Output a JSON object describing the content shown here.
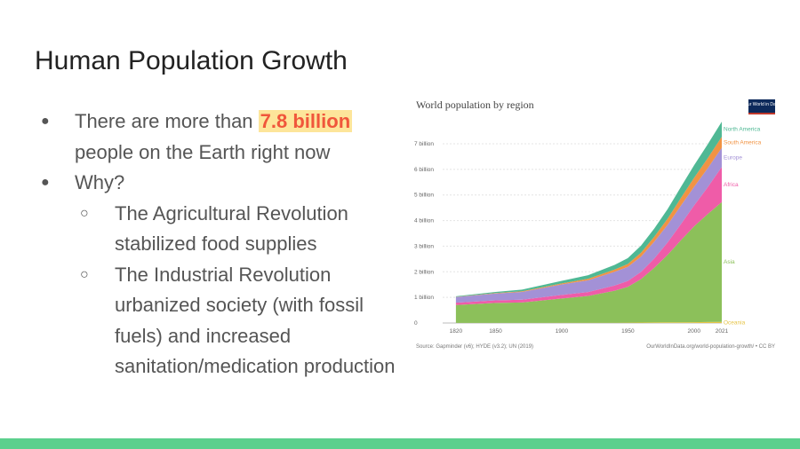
{
  "slide": {
    "title": "Human Population Growth",
    "bullets": {
      "first_prefix": "There are more than ",
      "first_highlight": "7.8 billion",
      "first_suffix": "people on the Earth right now",
      "second": "Why?",
      "sub1": "The Agricultural Revolution stabilized food supplies",
      "sub2": "The Industrial Revolution urbanized society (with fossil fuels) and increased sanitation/medication production"
    }
  },
  "colors": {
    "highlight_bg": "#fde59a",
    "highlight_text": "#f0563b",
    "accent_bar": "#5bd08d"
  },
  "chart_data": {
    "type": "area",
    "title": "World population by region",
    "logo_text": "Our World in Data",
    "x_ticks": [
      "1820",
      "1850",
      "1900",
      "1950",
      "2000",
      "2021"
    ],
    "y_ticks": [
      "0",
      "1 billion",
      "2 billion",
      "3 billion",
      "4 billion",
      "5 billion",
      "6 billion",
      "7 billion"
    ],
    "ylim": [
      0,
      7.8
    ],
    "x": [
      1820,
      1850,
      1870,
      1900,
      1920,
      1940,
      1950,
      1960,
      1970,
      1980,
      1990,
      2000,
      2010,
      2021
    ],
    "series": [
      {
        "name": "Oceania",
        "color": "#e6c446",
        "values": [
          0.002,
          0.002,
          0.002,
          0.006,
          0.008,
          0.011,
          0.013,
          0.016,
          0.02,
          0.023,
          0.027,
          0.031,
          0.037,
          0.044
        ]
      },
      {
        "name": "Asia",
        "color": "#8cc05a",
        "values": [
          0.7,
          0.78,
          0.8,
          0.95,
          1.05,
          1.25,
          1.4,
          1.7,
          2.14,
          2.64,
          3.2,
          3.74,
          4.2,
          4.68
        ]
      },
      {
        "name": "Africa",
        "color": "#ef5ca8",
        "values": [
          0.09,
          0.1,
          0.11,
          0.14,
          0.15,
          0.2,
          0.23,
          0.28,
          0.36,
          0.48,
          0.63,
          0.81,
          1.04,
          1.37
        ]
      },
      {
        "name": "Europe",
        "color": "#a391d6",
        "values": [
          0.22,
          0.27,
          0.3,
          0.41,
          0.46,
          0.54,
          0.55,
          0.6,
          0.66,
          0.69,
          0.72,
          0.73,
          0.74,
          0.75
        ]
      },
      {
        "name": "South America",
        "color": "#f19343",
        "values": [
          0.01,
          0.02,
          0.03,
          0.04,
          0.06,
          0.09,
          0.11,
          0.15,
          0.19,
          0.24,
          0.3,
          0.35,
          0.39,
          0.43
        ]
      },
      {
        "name": "North America",
        "color": "#4fb894",
        "values": [
          0.02,
          0.04,
          0.06,
          0.1,
          0.14,
          0.18,
          0.23,
          0.28,
          0.32,
          0.37,
          0.43,
          0.49,
          0.54,
          0.59
        ]
      }
    ],
    "source_left": "Source: Gapminder (v6); HYDE (v3.2); UN (2019)",
    "source_right": "OurWorldInData.org/world-population-growth/ • CC BY"
  }
}
